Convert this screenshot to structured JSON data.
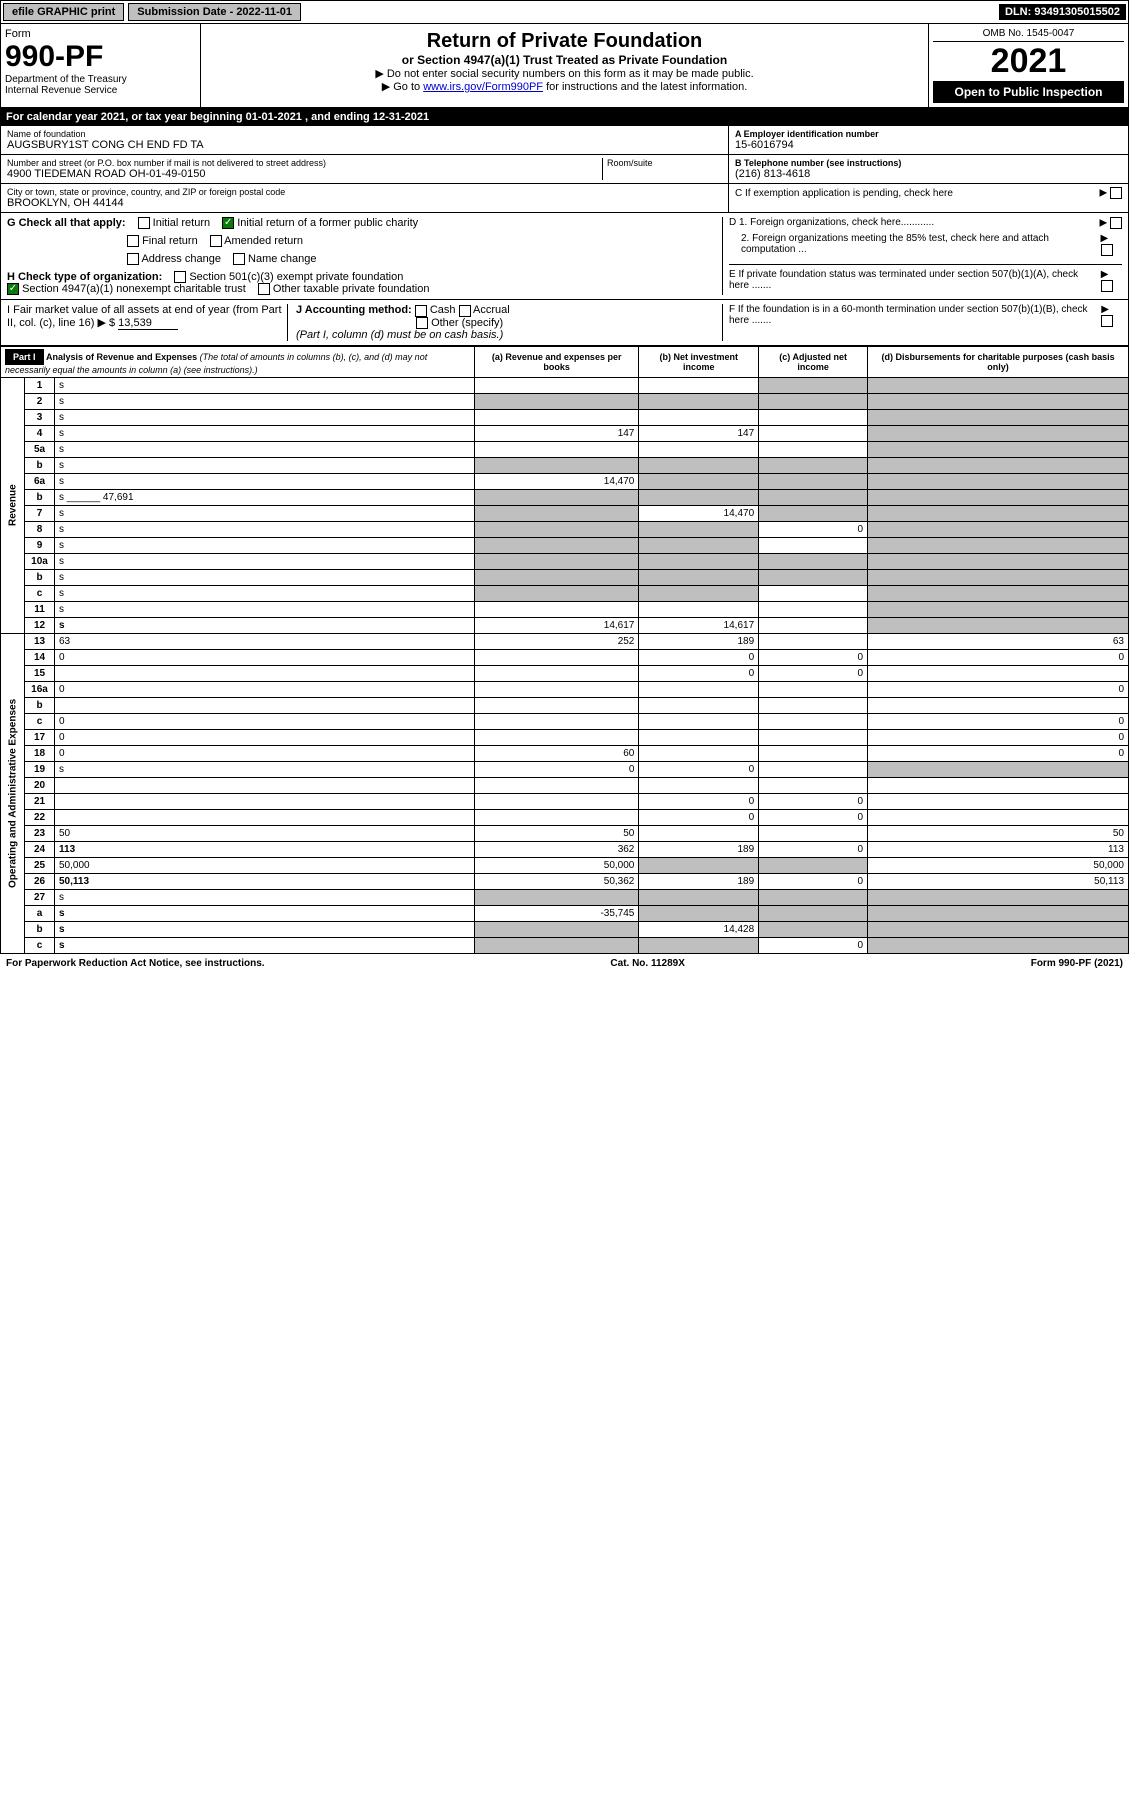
{
  "topbar": {
    "efile": "efile GRAPHIC print",
    "submission": "Submission Date - 2022-11-01",
    "dln": "DLN: 93491305015502"
  },
  "header": {
    "form_word": "Form",
    "form_no": "990-PF",
    "dept": "Department of the Treasury",
    "irs": "Internal Revenue Service",
    "title": "Return of Private Foundation",
    "subtitle": "or Section 4947(a)(1) Trust Treated as Private Foundation",
    "instr1": "▶ Do not enter social security numbers on this form as it may be made public.",
    "instr2_pre": "▶ Go to ",
    "instr2_link": "www.irs.gov/Form990PF",
    "instr2_post": " for instructions and the latest information.",
    "omb": "OMB No. 1545-0047",
    "year": "2021",
    "open": "Open to Public Inspection"
  },
  "calendar": {
    "text_pre": "For calendar year 2021, or tax year beginning ",
    "begin": "01-01-2021",
    "mid": " , and ending ",
    "end": "12-31-2021"
  },
  "foundation": {
    "name_label": "Name of foundation",
    "name": "AUGSBURY1ST CONG CH END FD TA",
    "addr_label": "Number and street (or P.O. box number if mail is not delivered to street address)",
    "addr": "4900 TIEDEMAN ROAD OH-01-49-0150",
    "room_label": "Room/suite",
    "city_label": "City or town, state or province, country, and ZIP or foreign postal code",
    "city": "BROOKLYN, OH  44144",
    "ein_label": "A Employer identification number",
    "ein": "15-6016794",
    "phone_label": "B Telephone number (see instructions)",
    "phone": "(216) 813-4618",
    "c_label": "C If exemption application is pending, check here",
    "d1": "D 1. Foreign organizations, check here............",
    "d2": "2. Foreign organizations meeting the 85% test, check here and attach computation ...",
    "e": "E  If private foundation status was terminated under section 507(b)(1)(A), check here .......",
    "f": "F  If the foundation is in a 60-month termination under section 507(b)(1)(B), check here .......",
    "g_label": "G Check all that apply:",
    "g_opts": [
      "Initial return",
      "Initial return of a former public charity",
      "Final return",
      "Amended return",
      "Address change",
      "Name change"
    ],
    "h_label": "H Check type of organization:",
    "h_opt1": "Section 501(c)(3) exempt private foundation",
    "h_opt2": "Section 4947(a)(1) nonexempt charitable trust",
    "h_opt3": "Other taxable private foundation",
    "i_label": "I Fair market value of all assets at end of year (from Part II, col. (c), line 16)",
    "i_val": "13,539",
    "j_label": "J Accounting method:",
    "j_opts": [
      "Cash",
      "Accrual",
      "Other (specify)"
    ],
    "j_note": "(Part I, column (d) must be on cash basis.)"
  },
  "part1": {
    "label": "Part I",
    "title": "Analysis of Revenue and Expenses",
    "note": "(The total of amounts in columns (b), (c), and (d) may not necessarily equal the amounts in column (a) (see instructions).)",
    "col_a": "(a) Revenue and expenses per books",
    "col_b": "(b) Net investment income",
    "col_c": "(c) Adjusted net income",
    "col_d": "(d) Disbursements for charitable purposes (cash basis only)"
  },
  "vert": {
    "revenue": "Revenue",
    "opex": "Operating and Administrative Expenses"
  },
  "rows": [
    {
      "n": "1",
      "d": "s",
      "a": "",
      "b": "",
      "c": "s"
    },
    {
      "n": "2",
      "d": "s",
      "a": "s",
      "b": "s",
      "c": "s",
      "checked": true
    },
    {
      "n": "3",
      "d": "s",
      "a": "",
      "b": "",
      "c": ""
    },
    {
      "n": "4",
      "d": "s",
      "a": "147",
      "b": "147",
      "c": ""
    },
    {
      "n": "5a",
      "d": "s",
      "a": "",
      "b": "",
      "c": ""
    },
    {
      "n": "b",
      "d": "s",
      "a": "s",
      "b": "s",
      "c": "s",
      "inset": true
    },
    {
      "n": "6a",
      "d": "s",
      "a": "14,470",
      "b": "s",
      "c": "s"
    },
    {
      "n": "b",
      "d": "s",
      "a": "s",
      "b": "s",
      "c": "s",
      "inset": true,
      "inset_val": "47,691"
    },
    {
      "n": "7",
      "d": "s",
      "a": "s",
      "b": "14,470",
      "c": "s"
    },
    {
      "n": "8",
      "d": "s",
      "a": "s",
      "b": "s",
      "c": "0"
    },
    {
      "n": "9",
      "d": "s",
      "a": "s",
      "b": "s",
      "c": ""
    },
    {
      "n": "10a",
      "d": "s",
      "a": "s",
      "b": "s",
      "c": "s",
      "inset": true
    },
    {
      "n": "b",
      "d": "s",
      "a": "s",
      "b": "s",
      "c": "s",
      "inset": true
    },
    {
      "n": "c",
      "d": "s",
      "a": "s",
      "b": "s",
      "c": ""
    },
    {
      "n": "11",
      "d": "s",
      "a": "",
      "b": "",
      "c": ""
    },
    {
      "n": "12",
      "d": "s",
      "a": "14,617",
      "b": "14,617",
      "c": "",
      "bold": true
    },
    {
      "n": "13",
      "d": "63",
      "a": "252",
      "b": "189",
      "c": ""
    },
    {
      "n": "14",
      "d": "0",
      "a": "",
      "b": "0",
      "c": "0"
    },
    {
      "n": "15",
      "d": "",
      "a": "",
      "b": "0",
      "c": "0"
    },
    {
      "n": "16a",
      "d": "0",
      "a": "",
      "b": "",
      "c": ""
    },
    {
      "n": "b",
      "d": "",
      "a": "",
      "b": "",
      "c": ""
    },
    {
      "n": "c",
      "d": "0",
      "a": "",
      "b": "",
      "c": ""
    },
    {
      "n": "17",
      "d": "0",
      "a": "",
      "b": "",
      "c": ""
    },
    {
      "n": "18",
      "d": "0",
      "a": "60",
      "b": "",
      "c": ""
    },
    {
      "n": "19",
      "d": "s",
      "a": "0",
      "b": "0",
      "c": ""
    },
    {
      "n": "20",
      "d": "",
      "a": "",
      "b": "",
      "c": ""
    },
    {
      "n": "21",
      "d": "",
      "a": "",
      "b": "0",
      "c": "0"
    },
    {
      "n": "22",
      "d": "",
      "a": "",
      "b": "0",
      "c": "0"
    },
    {
      "n": "23",
      "d": "50",
      "a": "50",
      "b": "",
      "c": ""
    },
    {
      "n": "24",
      "d": "113",
      "a": "362",
      "b": "189",
      "c": "0",
      "bold": true
    },
    {
      "n": "25",
      "d": "50,000",
      "a": "50,000",
      "b": "s",
      "c": "s"
    },
    {
      "n": "26",
      "d": "50,113",
      "a": "50,362",
      "b": "189",
      "c": "0",
      "bold": true
    },
    {
      "n": "27",
      "d": "s",
      "a": "s",
      "b": "s",
      "c": "s"
    },
    {
      "n": "a",
      "d": "s",
      "a": "-35,745",
      "b": "s",
      "c": "s",
      "bold": true
    },
    {
      "n": "b",
      "d": "s",
      "a": "s",
      "b": "14,428",
      "c": "s",
      "bold": true
    },
    {
      "n": "c",
      "d": "s",
      "a": "s",
      "b": "s",
      "c": "0",
      "bold": true
    }
  ],
  "footer": {
    "left": "For Paperwork Reduction Act Notice, see instructions.",
    "mid": "Cat. No. 11289X",
    "right": "Form 990-PF (2021)"
  }
}
